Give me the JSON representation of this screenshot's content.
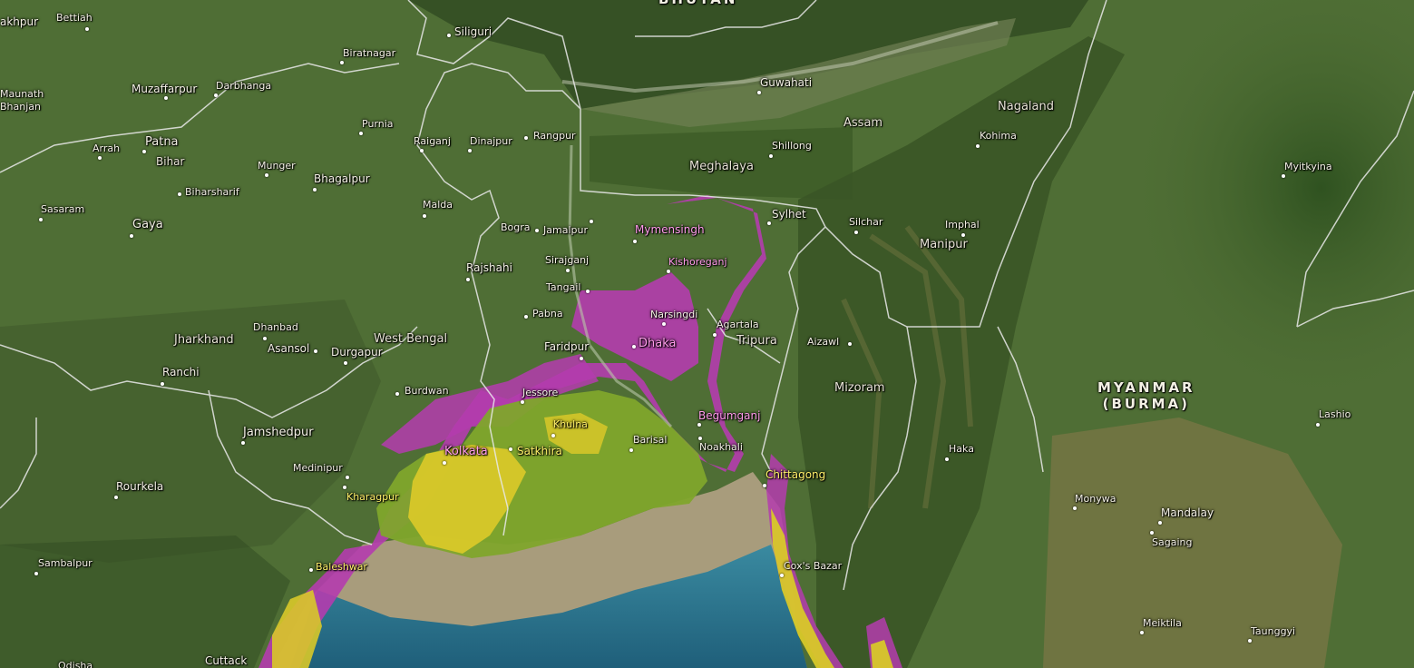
{
  "map": {
    "colors": {
      "land": "#4f6e35",
      "forest": "#3b5a26",
      "hills": "#6b6a3c",
      "sea": "#2b6d86",
      "silt": "#a89c7c",
      "flood_deep": "#b43cae",
      "flood_shallow": "#d8c829",
      "flood_green": "#7fa52c",
      "border": "#e9e9e9"
    },
    "labels": {
      "country_bhutan": "BHUTAN",
      "country_myanmar_line1": "MYANMAR",
      "country_myanmar_line2": "(BURMA)",
      "region_nagaland": "Nagaland",
      "region_assam": "Assam",
      "region_meghalaya": "Meghalaya",
      "region_manipur": "Manipur",
      "region_tripura": "Tripura",
      "region_mizoram": "Mizoram",
      "region_west_bengal": "West Bengal",
      "region_jharkhand": "Jharkhand",
      "region_bihar": "Bihar",
      "city_gorakhpur": "akhpur",
      "city_bettiah": "Bettiah",
      "city_muzaffarpur": "Muzaffarpur",
      "city_darbhanga": "Darbhanga",
      "city_maunath1": "Maunath",
      "city_maunath2": "Bhanjan",
      "city_arrah": "Arrah",
      "city_patna": "Patna",
      "city_munger": "Munger",
      "city_bhagalpur": "Bhagalpur",
      "city_biharsharif": "Biharsharif",
      "city_sasaram": "Sasaram",
      "city_gaya": "Gaya",
      "city_siliguri": "Siliguri",
      "city_biratnagar": "Biratnagar",
      "city_purnia": "Purnia",
      "city_raiganj": "Raiganj",
      "city_dinajpur": "Dinajpur",
      "city_rangpur": "Rangpur",
      "city_malda": "Malda",
      "city_guwahati": "Guwahati",
      "city_shillong": "Shillong",
      "city_kohima": "Kohima",
      "city_myitkyina": "Myitkyina",
      "city_imphal": "Imphal",
      "city_silchar": "Silchar",
      "city_sylhet": "Sylhet",
      "city_bogra": "Bogra",
      "city_jamalpur": "Jamalpur",
      "city_mymensingh": "Mymensingh",
      "city_kishoreganj": "Kishoreganj",
      "city_rajshahi": "Rajshahi",
      "city_sirajganj": "Sirajganj",
      "city_tangail": "Tangail",
      "city_pabna": "Pabna",
      "city_narsingdi": "Narsingdi",
      "city_agartala": "Agartala",
      "city_aizawl": "Aizawl",
      "city_faridpur": "Faridpur",
      "city_dhaka": "Dhaka",
      "city_dhanbad": "Dhanbad",
      "city_asansol": "Asansol",
      "city_durgapur": "Durgapur",
      "city_ranchi": "Ranchi",
      "city_burdwan": "Burdwan",
      "city_jessore": "Jessore",
      "city_khulna": "Khulna",
      "city_begumganj": "Begumganj",
      "city_noakhali": "Noakhali",
      "city_barisal": "Barisal",
      "city_satkhira": "Satkhira",
      "city_kolkata": "Kolkata",
      "city_jamshedpur": "Jamshedpur",
      "city_medinipur": "Medinipur",
      "city_kharagpur": "Kharagpur",
      "city_rourkela": "Rourkela",
      "city_chittagong": "Chittagong",
      "city_haka": "Haka",
      "city_lashio": "Lashio",
      "city_monywa": "Monywa",
      "city_mandalay": "Mandalay",
      "city_sagaing": "Sagaing",
      "city_sambalpur": "Sambalpur",
      "city_baleshwar": "Baleshwar",
      "city_coxs_bazar": "Cox's Bazar",
      "city_meiktila": "Meiktila",
      "city_taunggyi": "Taunggyi",
      "city_cuttack": "Cuttack",
      "city_odisha": "Odisha"
    }
  }
}
